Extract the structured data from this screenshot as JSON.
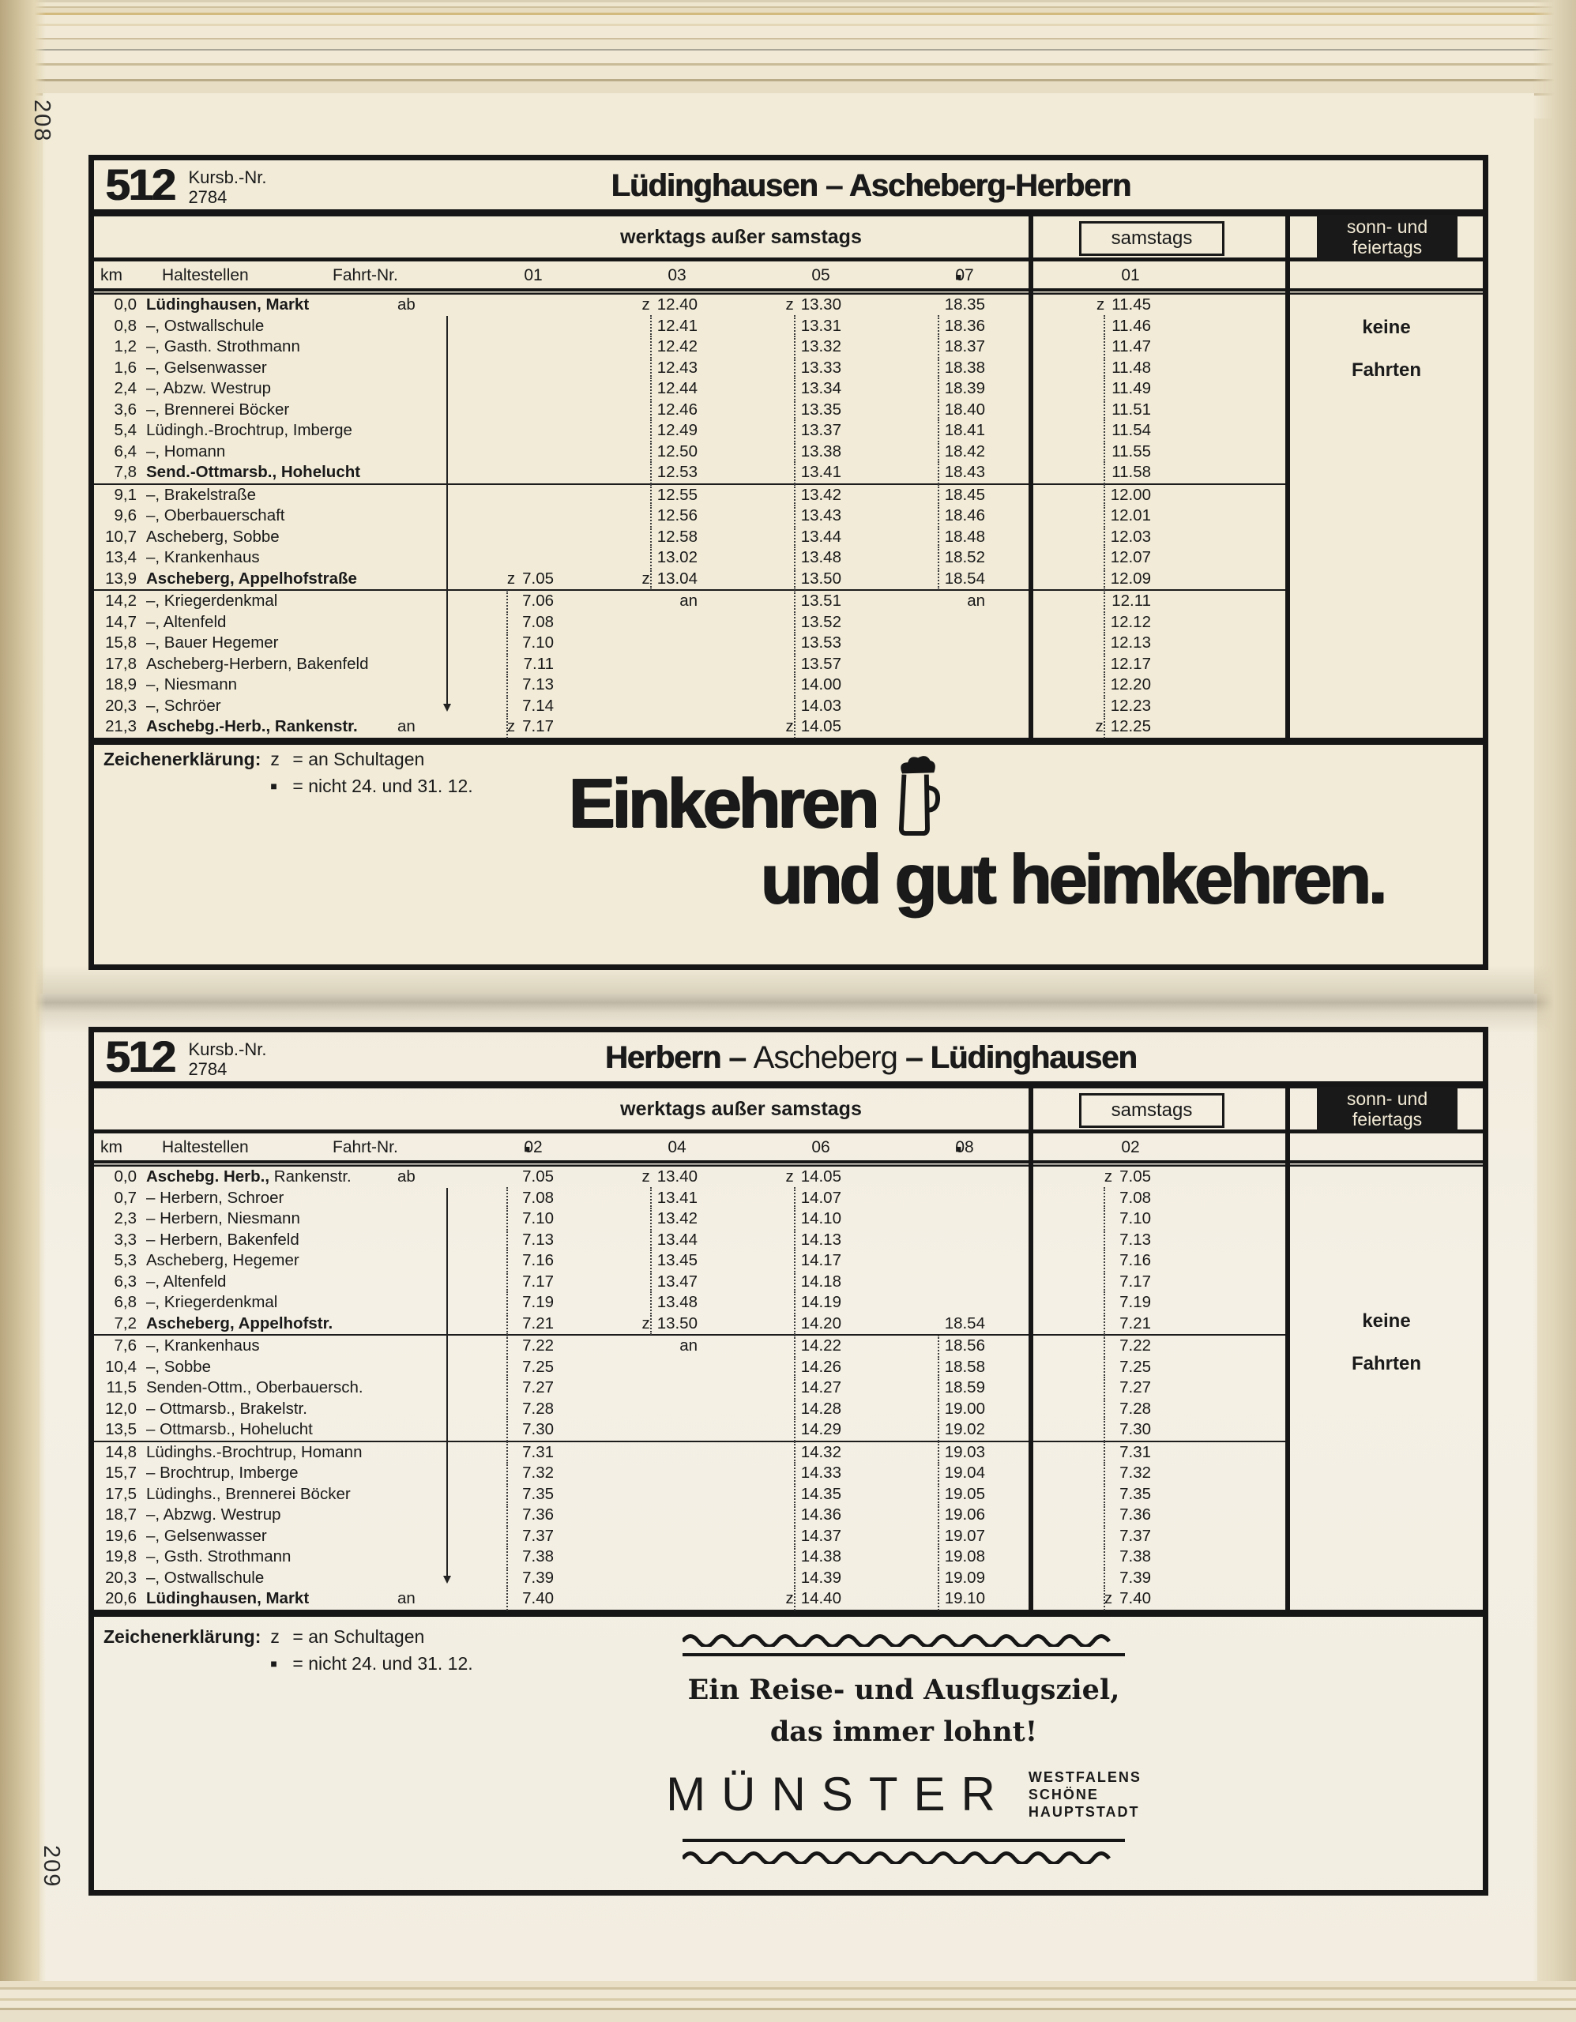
{
  "page": {
    "paper_color": "#f1ebd8",
    "ink_color": "#161616",
    "numbers": {
      "left_top": "208",
      "left_bottom": "209"
    }
  },
  "legend": {
    "title": "Zeichenerklärung:",
    "items": [
      {
        "symbol": "z",
        "text": "= an Schultagen"
      },
      {
        "symbol": "■",
        "text": "= nicht 24. und 31. 12."
      }
    ]
  },
  "ads": {
    "beer": {
      "icon": "beer-mug",
      "line1": "Einkehren",
      "line2": "und gut heimkehren."
    },
    "muenster": {
      "line1": "Ein Reise- und Ausflugsziel,",
      "line2": "das immer lohnt!",
      "brand": "MÜNSTER",
      "tagline1": "WESTFALENS",
      "tagline2": "SCHÖNE",
      "tagline3": "HAUPTSTADT"
    }
  },
  "tables": [
    {
      "route_number": "512",
      "kursb_label": "Kursb.-Nr.",
      "kursb_number": "2784",
      "title": "Lüdinghausen – Ascheberg-Herbern",
      "band": {
        "werktags": "werktags außer samstags",
        "samstags": "samstags",
        "sonn_line1": "sonn- und",
        "sonn_line2": "feiertags"
      },
      "headers": {
        "km": "km",
        "haltestellen": "Haltestellen",
        "fahrt": "Fahrt-Nr.",
        "trips": [
          "01",
          "03",
          "05",
          "■07"
        ],
        "sat_trip": "01"
      },
      "no_service": {
        "line1": "keine",
        "line2": "Fahrten"
      },
      "rows": [
        {
          "km": "0,0",
          "name": "Lüdinghausen, Markt",
          "bold": true,
          "mark": "ab",
          "times": [
            "",
            "z 12.40",
            "z 13.30",
            "18.35",
            "z 11.45"
          ]
        },
        {
          "km": "0,8",
          "name": "–, Ostwallschule",
          "times": [
            "",
            "12.41",
            "13.31",
            "18.36",
            "11.46"
          ]
        },
        {
          "km": "1,2",
          "name": "–, Gasth. Strothmann",
          "times": [
            "",
            "12.42",
            "13.32",
            "18.37",
            "11.47"
          ]
        },
        {
          "km": "1,6",
          "name": "–, Gelsenwasser",
          "times": [
            "",
            "12.43",
            "13.33",
            "18.38",
            "11.48"
          ]
        },
        {
          "km": "2,4",
          "name": "–, Abzw. Westrup",
          "times": [
            "",
            "12.44",
            "13.34",
            "18.39",
            "11.49"
          ]
        },
        {
          "km": "3,6",
          "name": "–, Brennerei Böcker",
          "times": [
            "",
            "12.46",
            "13.35",
            "18.40",
            "11.51"
          ]
        },
        {
          "km": "5,4",
          "name": "Lüdingh.-Brochtrup, Imberge",
          "times": [
            "",
            "12.49",
            "13.37",
            "18.41",
            "11.54"
          ]
        },
        {
          "km": "6,4",
          "name": "–, Homann",
          "times": [
            "",
            "12.50",
            "13.38",
            "18.42",
            "11.55"
          ]
        },
        {
          "km": "7,8",
          "name": "Send.-Ottmarsb., Hohelucht",
          "bold": true,
          "rule": true,
          "times": [
            "",
            "12.53",
            "13.41",
            "18.43",
            "11.58"
          ]
        },
        {
          "km": "9,1",
          "name": "–, Brakelstraße",
          "times": [
            "",
            "12.55",
            "13.42",
            "18.45",
            "12.00"
          ]
        },
        {
          "km": "9,6",
          "name": "–, Oberbauerschaft",
          "times": [
            "",
            "12.56",
            "13.43",
            "18.46",
            "12.01"
          ]
        },
        {
          "km": "10,7",
          "name": "Ascheberg, Sobbe",
          "times": [
            "",
            "12.58",
            "13.44",
            "18.48",
            "12.03"
          ]
        },
        {
          "km": "13,4",
          "name": "–, Krankenhaus",
          "times": [
            "",
            "13.02",
            "13.48",
            "18.52",
            "12.07"
          ]
        },
        {
          "km": "13,9",
          "name": "Ascheberg, Appelhofstraße",
          "bold": true,
          "rule": true,
          "times": [
            "z 7.05",
            "z 13.04",
            "13.50",
            "18.54",
            "12.09"
          ]
        },
        {
          "km": "14,2",
          "name": "–, Kriegerdenkmal",
          "times": [
            "7.06",
            "an",
            "13.51",
            "an",
            "12.11"
          ]
        },
        {
          "km": "14,7",
          "name": "–, Altenfeld",
          "times": [
            "7.08",
            "",
            "13.52",
            "",
            "12.12"
          ]
        },
        {
          "km": "15,8",
          "name": "–, Bauer Hegemer",
          "times": [
            "7.10",
            "",
            "13.53",
            "",
            "12.13"
          ]
        },
        {
          "km": "17,8",
          "name": "Ascheberg-Herbern, Bakenfeld",
          "times": [
            "7.11",
            "",
            "13.57",
            "",
            "12.17"
          ]
        },
        {
          "km": "18,9",
          "name": "–, Niesmann",
          "times": [
            "7.13",
            "",
            "14.00",
            "",
            "12.20"
          ]
        },
        {
          "km": "20,3",
          "name": "–, Schröer",
          "times": [
            "7.14",
            "",
            "14.03",
            "",
            "12.23"
          ]
        },
        {
          "km": "21,3",
          "name": "Aschebg.-Herb., Rankenstr.",
          "bold": true,
          "mark": "an",
          "times": [
            "z 7.17",
            "",
            "z 14.05",
            "",
            "z 12.25"
          ]
        }
      ]
    },
    {
      "route_number": "512",
      "kursb_label": "Kursb.-Nr.",
      "kursb_number": "2784",
      "title_seg1": "Herbern – ",
      "title_seg2": "Ascheberg",
      "title_seg3": " – Lüdinghausen",
      "band": {
        "werktags": "werktags außer samstags",
        "samstags": "samstags",
        "sonn_line1": "sonn- und",
        "sonn_line2": "feiertags"
      },
      "headers": {
        "km": "km",
        "haltestellen": "Haltestellen",
        "fahrt": "Fahrt-Nr.",
        "trips": [
          "■02",
          "04",
          "06",
          "■08"
        ],
        "sat_trip": "02"
      },
      "no_service": {
        "line1": "keine",
        "line2": "Fahrten"
      },
      "rows": [
        {
          "km": "0,0",
          "name": "Aschebg. Herb.,",
          "name2": " Rankenstr.",
          "bold": true,
          "mark": "ab",
          "times": [
            "7.05",
            "z 13.40",
            "z 14.05",
            "",
            "z 7.05"
          ]
        },
        {
          "km": "0,7",
          "name": "– Herbern, Schroer",
          "times": [
            "7.08",
            "13.41",
            "14.07",
            "",
            "7.08"
          ]
        },
        {
          "km": "2,3",
          "name": "– Herbern, Niesmann",
          "times": [
            "7.10",
            "13.42",
            "14.10",
            "",
            "7.10"
          ]
        },
        {
          "km": "3,3",
          "name": "– Herbern, Bakenfeld",
          "times": [
            "7.13",
            "13.44",
            "14.13",
            "",
            "7.13"
          ]
        },
        {
          "km": "5,3",
          "name": "Ascheberg, Hegemer",
          "times": [
            "7.16",
            "13.45",
            "14.17",
            "",
            "7.16"
          ]
        },
        {
          "km": "6,3",
          "name": "–, Altenfeld",
          "times": [
            "7.17",
            "13.47",
            "14.18",
            "",
            "7.17"
          ]
        },
        {
          "km": "6,8",
          "name": "–, Kriegerdenkmal",
          "times": [
            "7.19",
            "13.48",
            "14.19",
            "",
            "7.19"
          ]
        },
        {
          "km": "7,2",
          "name": "Ascheberg, Appelhofstr.",
          "bold": true,
          "rule": true,
          "times": [
            "7.21",
            "z 13.50",
            "14.20",
            "18.54",
            "7.21"
          ]
        },
        {
          "km": "7,6",
          "name": "–, Krankenhaus",
          "times": [
            "7.22",
            "an",
            "14.22",
            "18.56",
            "7.22"
          ]
        },
        {
          "km": "10,4",
          "name": "–, Sobbe",
          "times": [
            "7.25",
            "",
            "14.26",
            "18.58",
            "7.25"
          ]
        },
        {
          "km": "11,5",
          "name": "Senden-Ottm., Oberbauersch.",
          "times": [
            "7.27",
            "",
            "14.27",
            "18.59",
            "7.27"
          ]
        },
        {
          "km": "12,0",
          "name": "– Ottmarsb., Brakelstr.",
          "times": [
            "7.28",
            "",
            "14.28",
            "19.00",
            "7.28"
          ]
        },
        {
          "km": "13,5",
          "name": "– Ottmarsb., Hohelucht",
          "rule": true,
          "times": [
            "7.30",
            "",
            "14.29",
            "19.02",
            "7.30"
          ]
        },
        {
          "km": "14,8",
          "name": "Lüdinghs.-Brochtrup, Homann",
          "times": [
            "7.31",
            "",
            "14.32",
            "19.03",
            "7.31"
          ]
        },
        {
          "km": "15,7",
          "name": "– Brochtrup, Imberge",
          "times": [
            "7.32",
            "",
            "14.33",
            "19.04",
            "7.32"
          ]
        },
        {
          "km": "17,5",
          "name": "Lüdinghs., Brennerei Böcker",
          "times": [
            "7.35",
            "",
            "14.35",
            "19.05",
            "7.35"
          ]
        },
        {
          "km": "18,7",
          "name": "–, Abzwg. Westrup",
          "times": [
            "7.36",
            "",
            "14.36",
            "19.06",
            "7.36"
          ]
        },
        {
          "km": "19,6",
          "name": "–, Gelsenwasser",
          "times": [
            "7.37",
            "",
            "14.37",
            "19.07",
            "7.37"
          ]
        },
        {
          "km": "19,8",
          "name": "–, Gsth. Strothmann",
          "times": [
            "7.38",
            "",
            "14.38",
            "19.08",
            "7.38"
          ]
        },
        {
          "km": "20,3",
          "name": "–, Ostwallschule",
          "times": [
            "7.39",
            "",
            "14.39",
            "19.09",
            "7.39"
          ]
        },
        {
          "km": "20,6",
          "name": "Lüdinghausen, Markt",
          "bold": true,
          "mark": "an",
          "times": [
            "7.40",
            "",
            "z 14.40",
            "19.10",
            "z 7.40"
          ]
        }
      ]
    }
  ]
}
